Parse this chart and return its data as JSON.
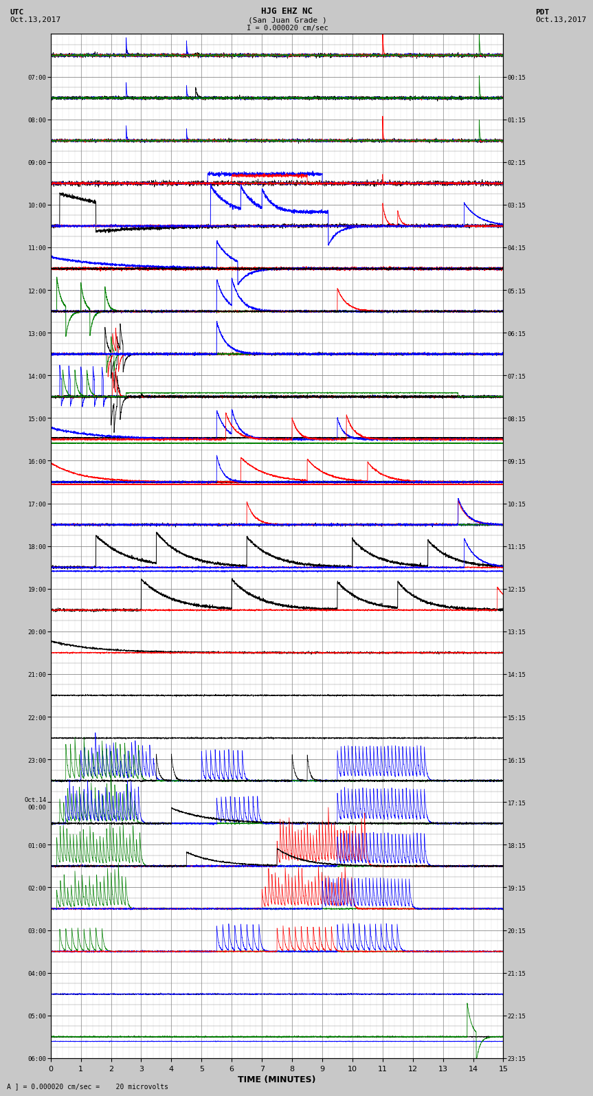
{
  "title_line1": "HJG EHZ NC",
  "title_line2": "(San Juan Grade )",
  "title_line3": "I = 0.000020 cm/sec",
  "label_left_top1": "UTC",
  "label_left_top2": "Oct.13,2017",
  "label_right_top1": "PDT",
  "label_right_top2": "Oct.13,2017",
  "xlabel": "TIME (MINUTES)",
  "footer": "A ] = 0.000020 cm/sec =    20 microvolts",
  "bg_color": "#c8c8c8",
  "plot_bg_color": "#ffffff",
  "grid_color": "#888888",
  "xlim": [
    0,
    15
  ],
  "xticks": [
    0,
    1,
    2,
    3,
    4,
    5,
    6,
    7,
    8,
    9,
    10,
    11,
    12,
    13,
    14,
    15
  ],
  "num_rows": 24,
  "utc_labels": [
    "07:00",
    "08:00",
    "09:00",
    "10:00",
    "11:00",
    "12:00",
    "13:00",
    "14:00",
    "15:00",
    "16:00",
    "17:00",
    "18:00",
    "19:00",
    "20:00",
    "21:00",
    "22:00",
    "23:00",
    "Oct.14\n00:00",
    "01:00",
    "02:00",
    "03:00",
    "04:00",
    "05:00",
    "06:00"
  ],
  "pdt_labels": [
    "00:15",
    "01:15",
    "02:15",
    "03:15",
    "04:15",
    "05:15",
    "06:15",
    "07:15",
    "08:15",
    "09:15",
    "10:15",
    "11:15",
    "12:15",
    "13:15",
    "14:15",
    "15:15",
    "16:15",
    "17:15",
    "18:15",
    "19:15",
    "20:15",
    "21:15",
    "22:15",
    "23:15"
  ]
}
